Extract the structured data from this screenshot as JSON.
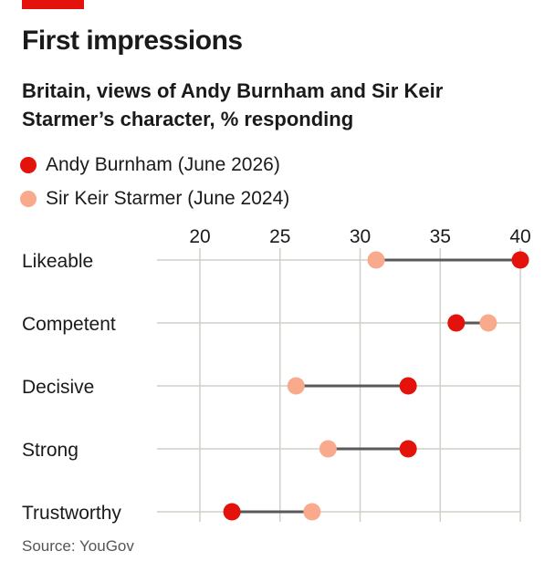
{
  "title": "First impressions",
  "subtitle": "Britain, views of Andy Burnham and Sir Keir Starmer’s character, % responding",
  "source": "Source: YouGov",
  "colors": {
    "accent": "#e3120b",
    "burnham": "#e3120b",
    "starmer": "#f9a98c",
    "connector": "#595959",
    "grid": "#d0d0c8"
  },
  "legend": [
    {
      "label": "Andy Burnham (June 2026)",
      "color": "#e3120b"
    },
    {
      "label": "Sir Keir Starmer (June 2024)",
      "color": "#f9a98c"
    }
  ],
  "chart_data": {
    "type": "dot",
    "title": "First impressions",
    "subtitle": "Britain, views of Andy Burnham and Sir Keir Starmer’s character, % responding",
    "categories": [
      "Likeable",
      "Competent",
      "Decisive",
      "Strong",
      "Trustworthy"
    ],
    "series": [
      {
        "name": "Andy Burnham (June 2026)",
        "color": "#e3120b",
        "values": [
          40,
          36,
          33,
          33,
          22
        ]
      },
      {
        "name": "Sir Keir Starmer (June 2024)",
        "color": "#f9a98c",
        "values": [
          31,
          38,
          26,
          28,
          27
        ]
      }
    ],
    "xlim": [
      20,
      40
    ],
    "xticks": [
      20,
      25,
      30,
      35,
      40
    ],
    "tick_position": "top",
    "grid": true,
    "legend_position": "top-left"
  }
}
